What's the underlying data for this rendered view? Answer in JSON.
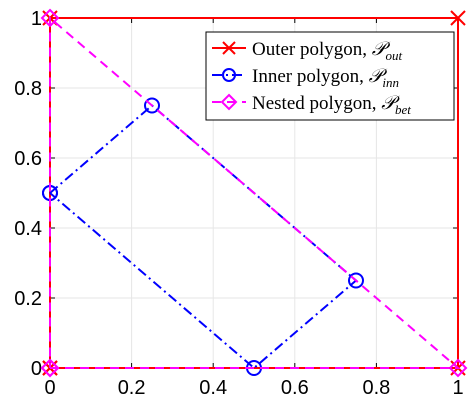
{
  "chart_data": {
    "type": "line",
    "title": "",
    "xlabel": "",
    "ylabel": "",
    "xlim": [
      0,
      1
    ],
    "ylim": [
      0,
      1
    ],
    "grid": true,
    "legend_position": "top-right",
    "x_ticks": [
      "0",
      "0.2",
      "0.4",
      "0.6",
      "0.8",
      "1"
    ],
    "y_ticks": [
      "0",
      "0.2",
      "0.4",
      "0.6",
      "0.8",
      "1"
    ],
    "series": [
      {
        "name": "Outer polygon, 𝒫_out",
        "legend_prefix": "Outer polygon, ",
        "legend_symbol": "𝒫",
        "legend_subscript": "out",
        "color": "#ff0000",
        "line_style": "solid",
        "marker": "x",
        "points": [
          [
            0,
            0
          ],
          [
            1,
            0
          ],
          [
            1,
            1
          ],
          [
            0,
            1
          ],
          [
            0,
            0
          ]
        ]
      },
      {
        "name": "Inner polygon, 𝒫_inn",
        "legend_prefix": "Inner polygon, ",
        "legend_symbol": "𝒫",
        "legend_subscript": "inn",
        "color": "#0000ff",
        "line_style": "dashdot",
        "marker": "circle",
        "points": [
          [
            0,
            0.5
          ],
          [
            0.25,
            0.75
          ],
          [
            0.75,
            0.25
          ],
          [
            0.5,
            0
          ],
          [
            0,
            0.5
          ]
        ]
      },
      {
        "name": "Nested polygon, 𝒫_bet",
        "legend_prefix": "Nested polygon, ",
        "legend_symbol": "𝒫",
        "legend_subscript": "bet",
        "color": "#ff00ff",
        "line_style": "dashed",
        "marker": "diamond",
        "points": [
          [
            0,
            0
          ],
          [
            1,
            0
          ],
          [
            0,
            1
          ],
          [
            0,
            0
          ]
        ]
      }
    ]
  }
}
